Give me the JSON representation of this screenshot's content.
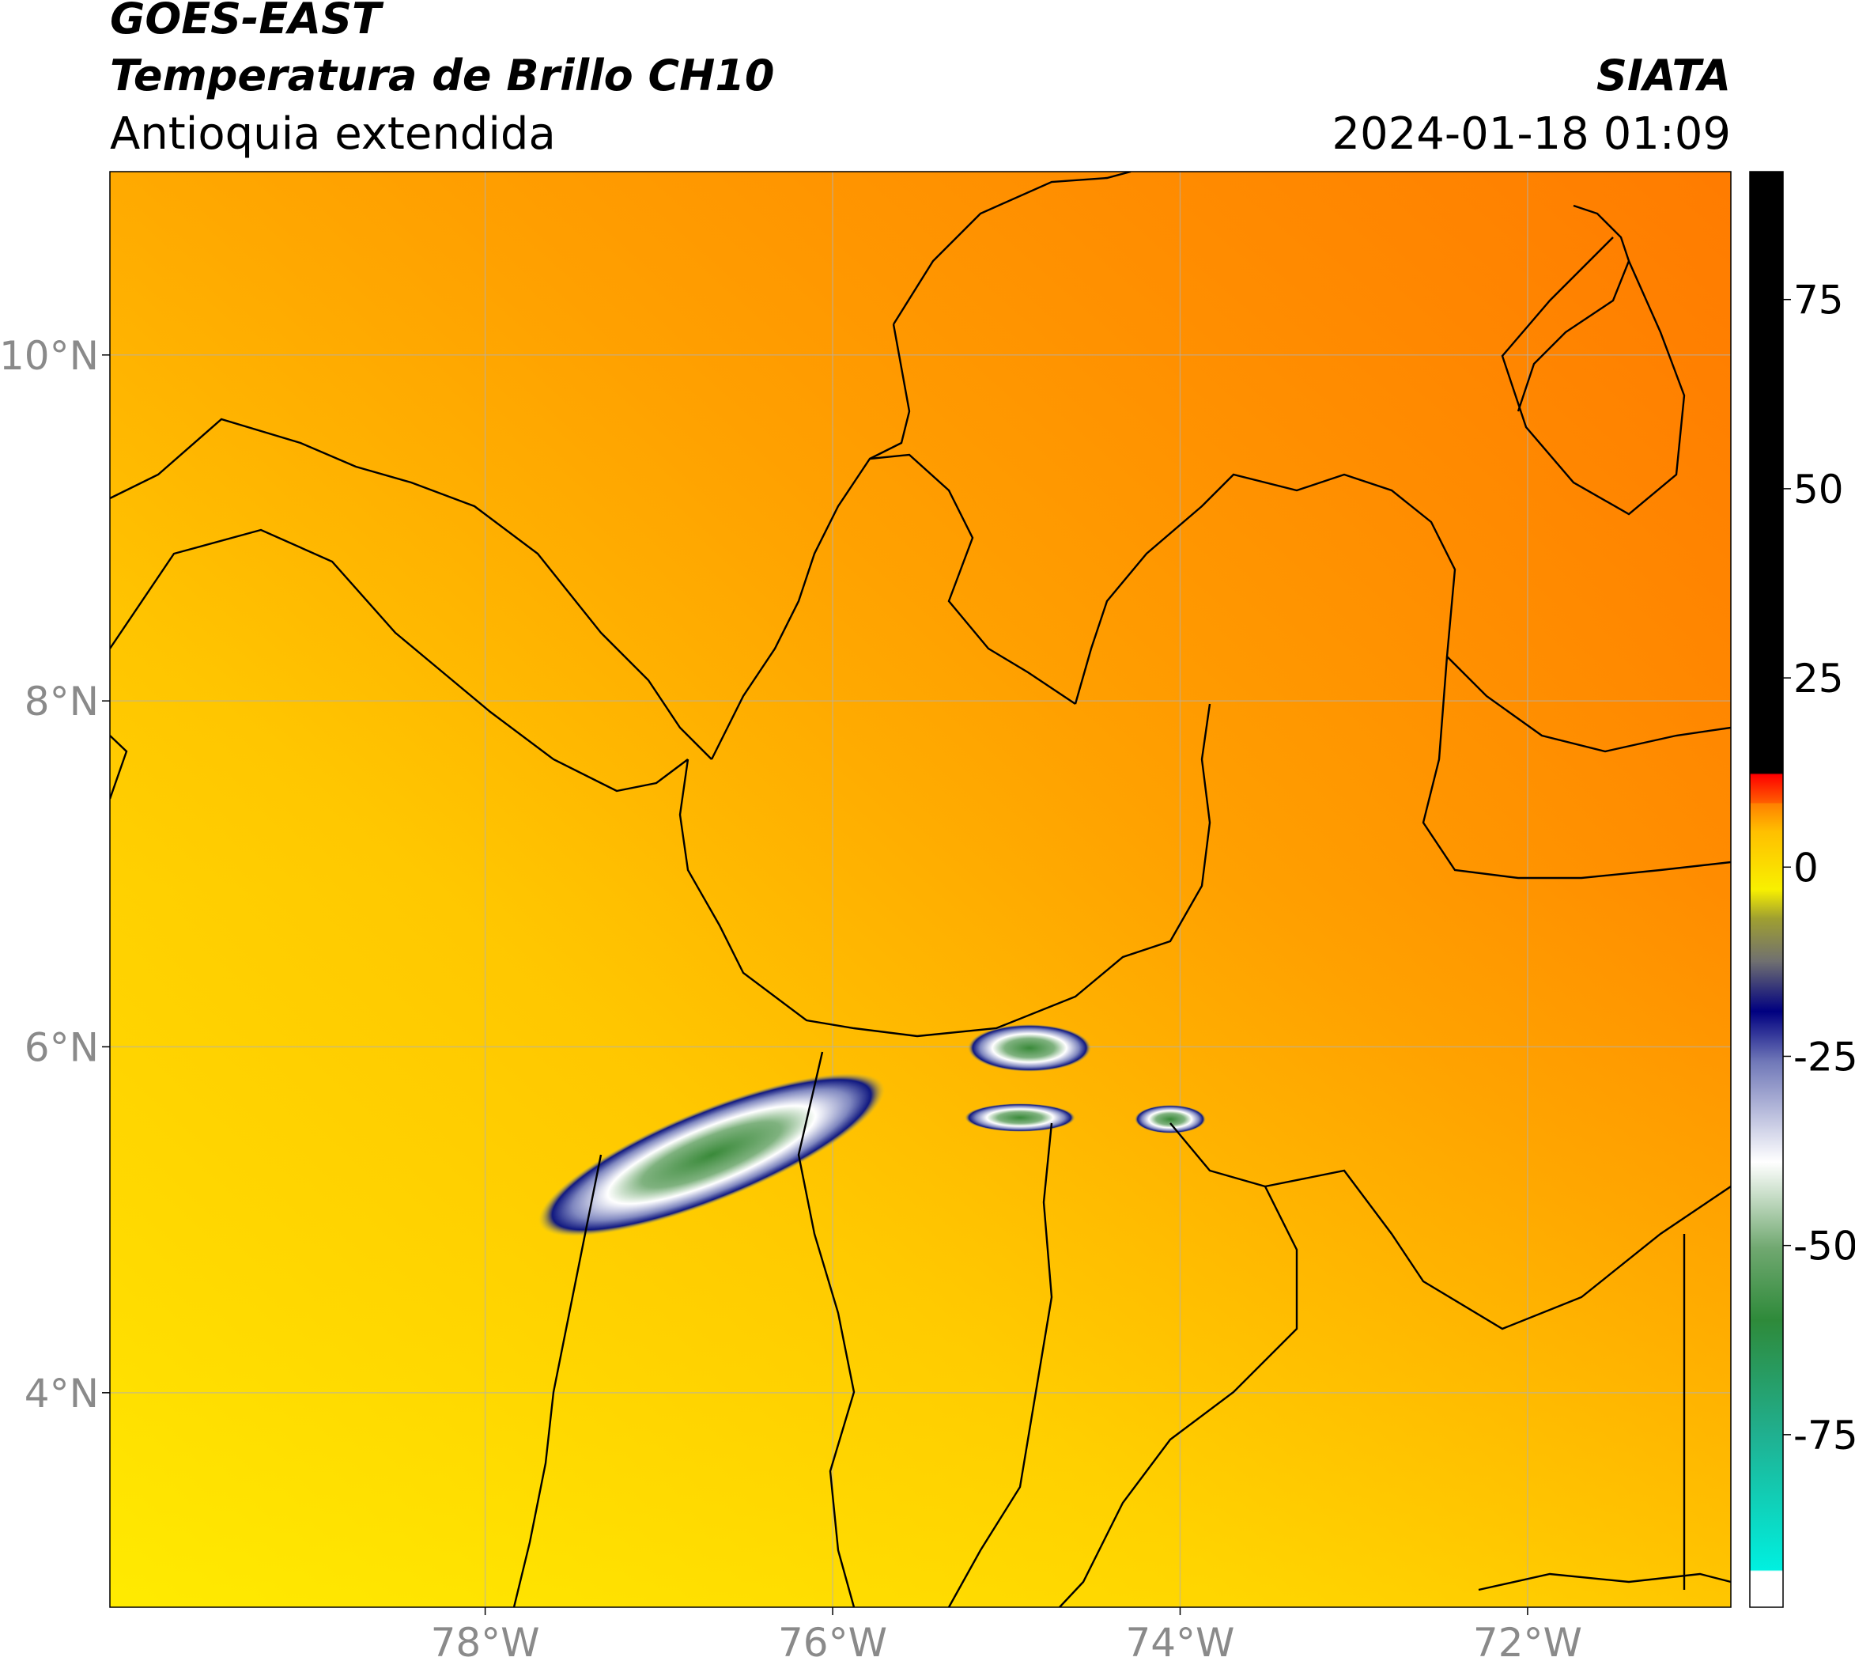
{
  "chart_data": {
    "type": "map",
    "title": "GOES-EAST",
    "subtitle": "Temperatura de Brillo CH10",
    "region": "Antioquia extendida",
    "source": "SIATA",
    "datetime": "2024-01-18 01:09",
    "xlim": [
      -80.16,
      -70.83
    ],
    "ylim": [
      2.76,
      11.06
    ],
    "xticks": [
      {
        "value": -78,
        "label": "78°W"
      },
      {
        "value": -76,
        "label": "76°W"
      },
      {
        "value": -74,
        "label": "74°W"
      },
      {
        "value": -72,
        "label": "72°W"
      }
    ],
    "yticks": [
      {
        "value": 4,
        "label": "4°N"
      },
      {
        "value": 6,
        "label": "6°N"
      },
      {
        "value": 8,
        "label": "8°N"
      },
      {
        "value": 10,
        "label": "10°N"
      }
    ],
    "grid": true,
    "colorbar": {
      "clim": [
        -97.8,
        91.9
      ],
      "ticks": [
        -75,
        -50,
        -25,
        0,
        25,
        50,
        75
      ]
    }
  }
}
